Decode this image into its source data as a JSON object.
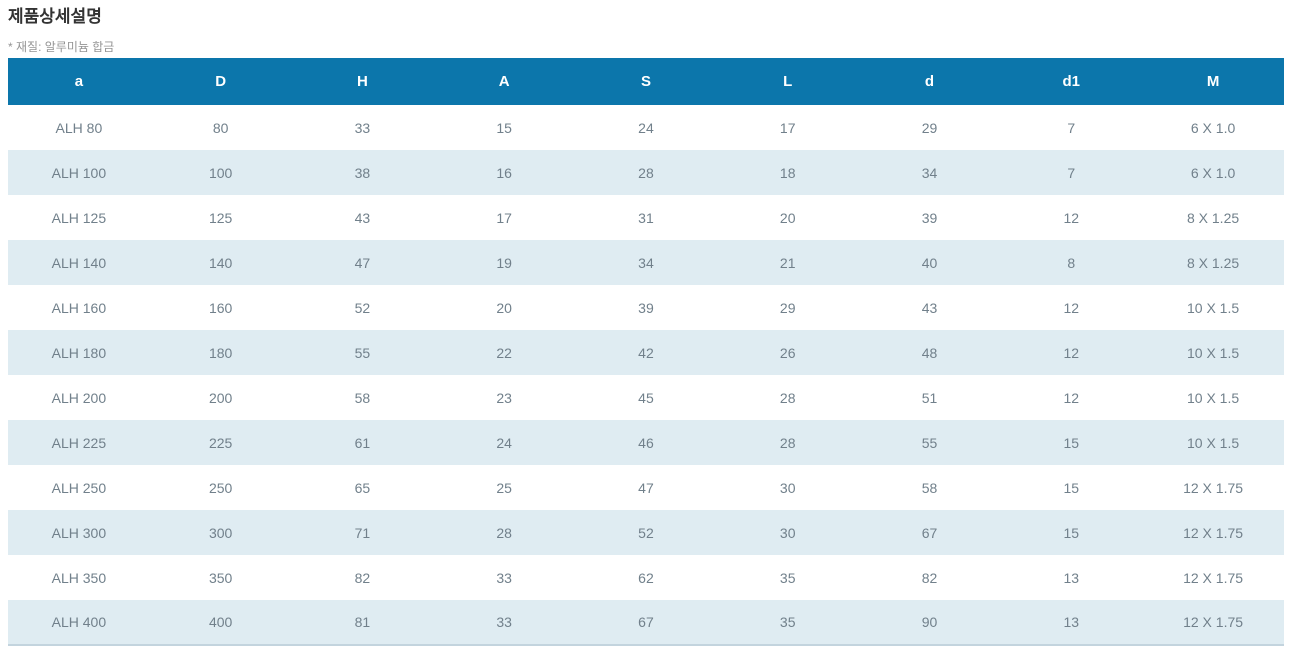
{
  "page": {
    "title": "제품상세설명",
    "note": "* 재질: 알루미늄 합금"
  },
  "colors": {
    "header_bg": "#0c76ab",
    "header_text": "#ffffff",
    "row_alt_bg": "#dfecf2",
    "row_text": "#71808b",
    "table_bottom_border": "#c3d4de",
    "title_text": "#333333",
    "note_text": "#949494"
  },
  "table": {
    "columns": [
      "a",
      "D",
      "H",
      "A",
      "S",
      "L",
      "d",
      "d1",
      "M"
    ],
    "rows": [
      [
        "ALH 80",
        "80",
        "33",
        "15",
        "24",
        "17",
        "29",
        "7",
        "6 X 1.0"
      ],
      [
        "ALH 100",
        "100",
        "38",
        "16",
        "28",
        "18",
        "34",
        "7",
        "6 X 1.0"
      ],
      [
        "ALH 125",
        "125",
        "43",
        "17",
        "31",
        "20",
        "39",
        "12",
        "8 X 1.25"
      ],
      [
        "ALH 140",
        "140",
        "47",
        "19",
        "34",
        "21",
        "40",
        "8",
        "8 X 1.25"
      ],
      [
        "ALH 160",
        "160",
        "52",
        "20",
        "39",
        "29",
        "43",
        "12",
        "10 X 1.5"
      ],
      [
        "ALH 180",
        "180",
        "55",
        "22",
        "42",
        "26",
        "48",
        "12",
        "10 X 1.5"
      ],
      [
        "ALH 200",
        "200",
        "58",
        "23",
        "45",
        "28",
        "51",
        "12",
        "10 X 1.5"
      ],
      [
        "ALH 225",
        "225",
        "61",
        "24",
        "46",
        "28",
        "55",
        "15",
        "10 X 1.5"
      ],
      [
        "ALH 250",
        "250",
        "65",
        "25",
        "47",
        "30",
        "58",
        "15",
        "12 X 1.75"
      ],
      [
        "ALH 300",
        "300",
        "71",
        "28",
        "52",
        "30",
        "67",
        "15",
        "12 X 1.75"
      ],
      [
        "ALH 350",
        "350",
        "82",
        "33",
        "62",
        "35",
        "82",
        "13",
        "12 X 1.75"
      ],
      [
        "ALH 400",
        "400",
        "81",
        "33",
        "67",
        "35",
        "90",
        "13",
        "12 X 1.75"
      ]
    ]
  }
}
